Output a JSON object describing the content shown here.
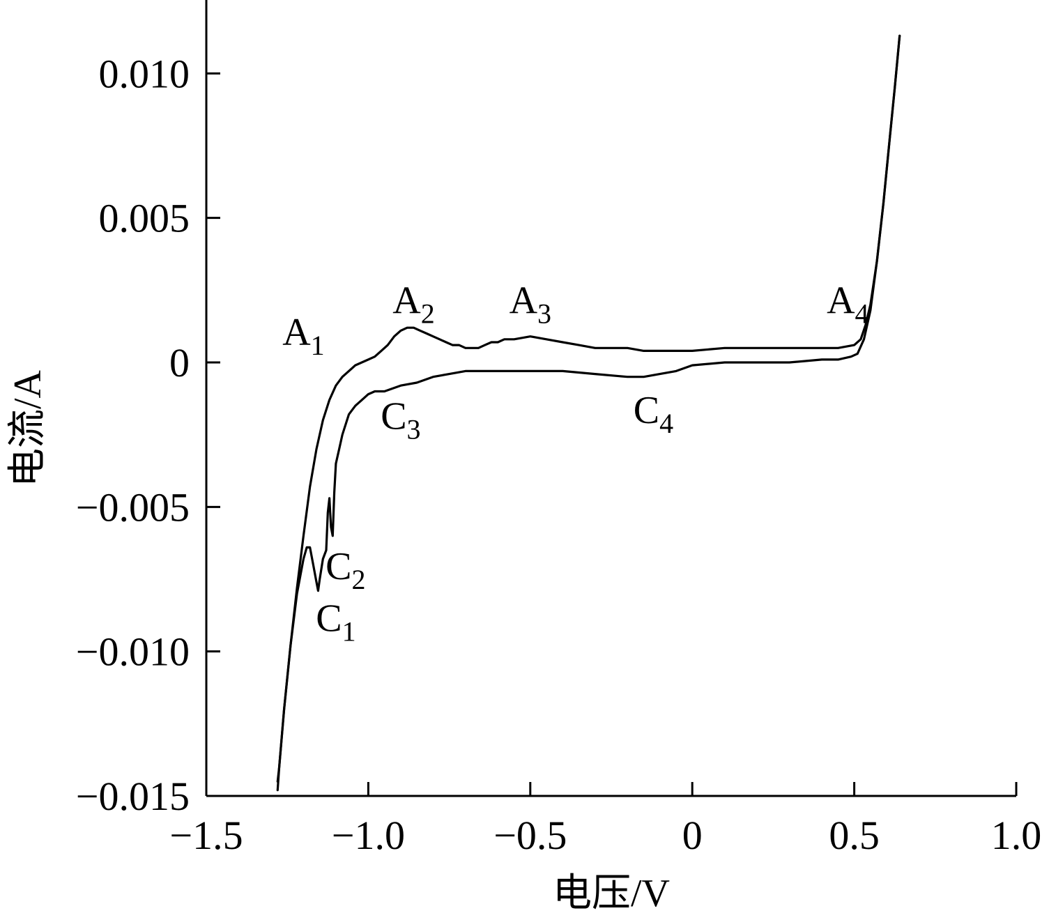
{
  "chart_data": {
    "type": "line",
    "title": "",
    "xlabel": "电压/V",
    "ylabel": "电流/A",
    "xlim": [
      -1.5,
      1.0
    ],
    "ylim": [
      -0.015,
      0.012
    ],
    "x_ticks": [
      -1.5,
      -1.0,
      -0.5,
      0,
      0.5,
      1.0
    ],
    "x_tick_labels": [
      "−1.5",
      "−1.0",
      "−0.5",
      "0",
      "0.5",
      "1.0"
    ],
    "y_ticks": [
      -0.015,
      -0.01,
      -0.005,
      0,
      0.005,
      0.01
    ],
    "y_tick_labels": [
      "−0.015",
      "−0.010",
      "−0.005",
      "0",
      "0.005",
      "0.010"
    ],
    "grid": false,
    "legend": "none",
    "series": [
      {
        "x": [
          -1.28,
          -1.275,
          -1.26,
          -1.24,
          -1.22,
          -1.2,
          -1.18,
          -1.16,
          -1.14,
          -1.12,
          -1.1,
          -1.08,
          -1.06,
          -1.04,
          -1.02,
          -1.0,
          -0.98,
          -0.96,
          -0.94,
          -0.92,
          -0.9,
          -0.88,
          -0.86,
          -0.84,
          -0.82,
          -0.8,
          -0.78,
          -0.76,
          -0.74,
          -0.72,
          -0.7,
          -0.68,
          -0.66,
          -0.64,
          -0.62,
          -0.6,
          -0.58,
          -0.55,
          -0.5,
          -0.45,
          -0.4,
          -0.35,
          -0.3,
          -0.25,
          -0.2,
          -0.15,
          -0.1,
          -0.05,
          0.0,
          0.1,
          0.2,
          0.3,
          0.4,
          0.45,
          0.5,
          0.52,
          0.535,
          0.55,
          0.57,
          0.59,
          0.61,
          0.625,
          0.64
        ],
        "y": [
          -0.0145,
          -0.014,
          -0.012,
          -0.0098,
          -0.0078,
          -0.006,
          -0.0043,
          -0.003,
          -0.002,
          -0.0013,
          -0.0008,
          -0.0005,
          -0.0003,
          -0.0001,
          0.0,
          0.0001,
          0.0002,
          0.0004,
          0.0006,
          0.0009,
          0.0011,
          0.0012,
          0.0012,
          0.0011,
          0.001,
          0.0009,
          0.0008,
          0.0007,
          0.0006,
          0.0006,
          0.0005,
          0.0005,
          0.0005,
          0.0006,
          0.0007,
          0.0007,
          0.0008,
          0.0008,
          0.0009,
          0.0008,
          0.0007,
          0.0006,
          0.0005,
          0.0005,
          0.0005,
          0.0004,
          0.0004,
          0.0004,
          0.0004,
          0.0005,
          0.0005,
          0.0005,
          0.0005,
          0.0005,
          0.0006,
          0.0008,
          0.0013,
          0.002,
          0.0035,
          0.0055,
          0.0078,
          0.0095,
          0.0113
        ]
      },
      {
        "x": [
          0.64,
          0.625,
          0.61,
          0.59,
          0.57,
          0.55,
          0.53,
          0.51,
          0.49,
          0.45,
          0.4,
          0.3,
          0.2,
          0.1,
          0.0,
          -0.05,
          -0.1,
          -0.15,
          -0.2,
          -0.3,
          -0.4,
          -0.5,
          -0.6,
          -0.7,
          -0.75,
          -0.8,
          -0.85,
          -0.9,
          -0.95,
          -0.98,
          -1.0,
          -1.02,
          -1.04,
          -1.06,
          -1.08,
          -1.09,
          -1.1,
          -1.105,
          -1.11,
          -1.115,
          -1.12,
          -1.125,
          -1.13,
          -1.14,
          -1.15,
          -1.155,
          -1.16,
          -1.17,
          -1.18,
          -1.19,
          -1.2,
          -1.22,
          -1.24,
          -1.26,
          -1.275,
          -1.28
        ],
        "y": [
          0.0113,
          0.0095,
          0.0078,
          0.0055,
          0.0035,
          0.0018,
          0.0008,
          0.0003,
          0.0002,
          0.0001,
          0.0001,
          0.0,
          0.0,
          0.0,
          -0.0001,
          -0.0003,
          -0.0004,
          -0.0005,
          -0.0005,
          -0.0004,
          -0.0003,
          -0.0003,
          -0.0003,
          -0.0003,
          -0.0004,
          -0.0005,
          -0.0007,
          -0.0008,
          -0.001,
          -0.001,
          -0.0011,
          -0.0013,
          -0.0015,
          -0.0018,
          -0.0025,
          -0.003,
          -0.0035,
          -0.0045,
          -0.006,
          -0.0057,
          -0.0047,
          -0.0052,
          -0.0065,
          -0.0068,
          -0.0075,
          -0.0079,
          -0.0076,
          -0.007,
          -0.0064,
          -0.0064,
          -0.0068,
          -0.008,
          -0.0098,
          -0.012,
          -0.014,
          -0.0148
        ]
      }
    ],
    "annotations": [
      {
        "main": "A",
        "sub": "1",
        "x": -1.2,
        "y": 0.0006
      },
      {
        "main": "A",
        "sub": "2",
        "x": -0.86,
        "y": 0.0017
      },
      {
        "main": "A",
        "sub": "3",
        "x": -0.5,
        "y": 0.0017
      },
      {
        "main": "A",
        "sub": "4",
        "x": 0.48,
        "y": 0.0017
      },
      {
        "main": "C",
        "sub": "1",
        "x": -1.1,
        "y": -0.0093
      },
      {
        "main": "C",
        "sub": "2",
        "x": -1.07,
        "y": -0.0075
      },
      {
        "main": "C",
        "sub": "3",
        "x": -0.9,
        "y": -0.0023
      },
      {
        "main": "C",
        "sub": "4",
        "x": -0.12,
        "y": -0.0021
      }
    ]
  }
}
